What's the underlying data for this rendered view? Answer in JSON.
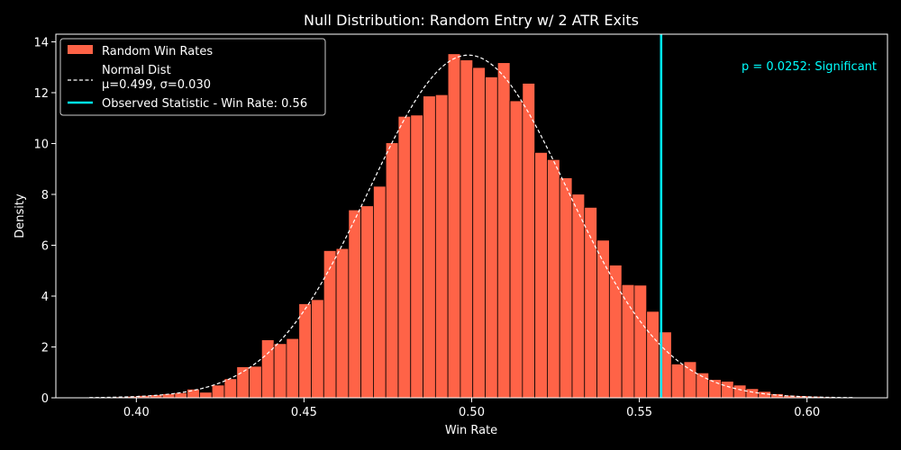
{
  "chart_data": {
    "type": "bar",
    "title": "Null Distribution: Random Entry w/ 2 ATR Exits",
    "xlabel": "Win Rate",
    "ylabel": "Density",
    "xlim": [
      0.376,
      0.624
    ],
    "ylim": [
      0,
      14.3
    ],
    "xticks": [
      0.4,
      0.45,
      0.5,
      0.55,
      0.6
    ],
    "xtick_labels": [
      "0.40",
      "0.45",
      "0.50",
      "0.55",
      "0.60"
    ],
    "yticks": [
      0,
      2,
      4,
      6,
      8,
      10,
      12,
      14
    ],
    "ytick_labels": [
      "0",
      "2",
      "4",
      "6",
      "8",
      "10",
      "12",
      "14"
    ],
    "grid": false,
    "legend_position": "upper-left",
    "colors": {
      "background": "#000000",
      "bars": "#ff6347",
      "bar_edge": "#000000",
      "normal_curve": "#ffffff",
      "observed_line": "#00e5ee",
      "annotation": "#00ffff",
      "axis": "#ffffff"
    },
    "histogram": {
      "name": "Random Win Rates",
      "start": 0.3855,
      "bin_width": 0.003704,
      "densities": [
        0.02,
        0.03,
        0.04,
        0.06,
        0.09,
        0.12,
        0.16,
        0.2,
        0.34,
        0.22,
        0.5,
        0.75,
        1.22,
        1.24,
        2.28,
        2.13,
        2.33,
        3.7,
        3.86,
        5.79,
        5.87,
        7.39,
        7.55,
        8.32,
        10.03,
        11.07,
        11.12,
        11.87,
        11.92,
        13.53,
        13.29,
        12.99,
        12.62,
        13.18,
        11.68,
        12.37,
        9.65,
        9.37,
        8.65,
        8.01,
        7.49,
        6.2,
        5.22,
        4.45,
        4.43,
        3.4,
        2.59,
        1.33,
        1.42,
        0.98,
        0.72,
        0.65,
        0.5,
        0.36,
        0.25,
        0.16,
        0.1,
        0.08,
        0.06,
        0.04,
        0.03,
        0.02
      ]
    },
    "normal_fit": {
      "name_line1": "Normal Dist",
      "name_line2": "μ=0.499, σ=0.030",
      "mu": 0.499,
      "sigma": 0.0296,
      "x_range": [
        0.386,
        0.614
      ]
    },
    "observed": {
      "label": "Observed Statistic - Win Rate: 0.56",
      "value": 0.5565
    },
    "annotation": "p = 0.0252:  Significant"
  }
}
